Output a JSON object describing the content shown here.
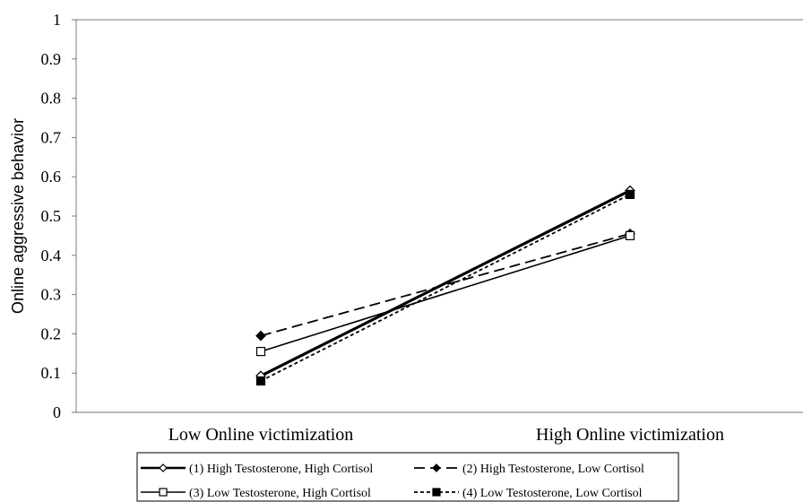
{
  "chart_data": {
    "type": "line",
    "title": "",
    "xlabel": "",
    "ylabel": "Online aggressive behavior",
    "ylim": [
      0,
      1
    ],
    "yticks": [
      "0",
      "0.1",
      "0.2",
      "0.3",
      "0.4",
      "0.5",
      "0.6",
      "0.7",
      "0.8",
      "0.9",
      "1"
    ],
    "categories": [
      "Low Online victimization",
      "High Online victimization"
    ],
    "grid": false,
    "legend_position": "bottom",
    "series": [
      {
        "name": "(1) High Testosterone, High Cortisol",
        "values": [
          0.093,
          0.565
        ],
        "marker": "diamond-open",
        "line": "solid-thick"
      },
      {
        "name": "(2) High Testosterone, Low Cortisol",
        "values": [
          0.195,
          0.455
        ],
        "marker": "diamond-filled",
        "line": "long-dash"
      },
      {
        "name": "(3) Low Testosterone, High Cortisol",
        "values": [
          0.155,
          0.45
        ],
        "marker": "square-open",
        "line": "solid-thin"
      },
      {
        "name": "(4) Low Testosterone, Low Cortisol",
        "values": [
          0.08,
          0.555
        ],
        "marker": "square-filled",
        "line": "short-dash"
      }
    ]
  }
}
